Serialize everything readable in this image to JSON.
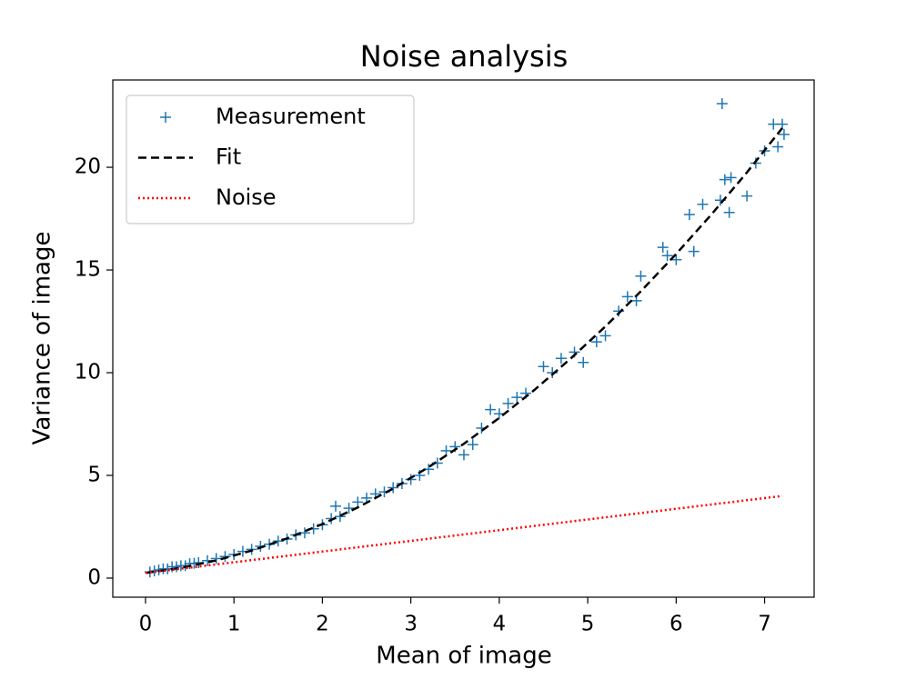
{
  "chart_data": {
    "type": "scatter",
    "title": "Noise analysis",
    "x_label": "Mean of image",
    "y_label": "Variance of image",
    "xlim": [
      -0.37,
      7.56
    ],
    "ylim": [
      -0.93,
      24.25
    ],
    "xticks": [
      0,
      1,
      2,
      3,
      4,
      5,
      6,
      7
    ],
    "yticks": [
      0,
      5,
      10,
      15,
      20
    ],
    "legend": "upper left",
    "series": [
      {
        "name": "Measurement",
        "color": "#1f77b4",
        "style": "plus",
        "x": [
          0.05,
          0.1,
          0.15,
          0.2,
          0.25,
          0.3,
          0.35,
          0.4,
          0.45,
          0.5,
          0.55,
          0.6,
          0.7,
          0.8,
          0.9,
          1.0,
          1.1,
          1.2,
          1.3,
          1.4,
          1.5,
          1.6,
          1.7,
          1.8,
          1.9,
          2.0,
          2.1,
          2.15,
          2.2,
          2.3,
          2.4,
          2.5,
          2.6,
          2.7,
          2.8,
          2.9,
          3.0,
          3.1,
          3.2,
          3.3,
          3.4,
          3.5,
          3.6,
          3.7,
          3.8,
          3.9,
          4.0,
          4.1,
          4.2,
          4.3,
          4.5,
          4.6,
          4.7,
          4.85,
          4.95,
          5.1,
          5.2,
          5.35,
          5.45,
          5.55,
          5.6,
          5.9,
          5.85,
          6.0,
          6.2,
          6.15,
          6.3,
          6.5,
          6.55,
          6.62,
          6.52,
          6.6,
          6.8,
          6.9,
          7.0,
          7.1,
          7.2,
          7.15,
          7.22
        ],
        "values": [
          0.3,
          0.35,
          0.4,
          0.45,
          0.45,
          0.55,
          0.55,
          0.6,
          0.6,
          0.7,
          0.72,
          0.75,
          0.85,
          0.95,
          1.05,
          1.15,
          1.3,
          1.4,
          1.55,
          1.65,
          1.8,
          1.9,
          2.1,
          2.2,
          2.4,
          2.6,
          2.9,
          3.5,
          3.0,
          3.4,
          3.7,
          3.9,
          4.1,
          4.2,
          4.4,
          4.6,
          4.8,
          5.0,
          5.3,
          5.6,
          6.2,
          6.4,
          6.0,
          6.5,
          7.3,
          8.2,
          8.0,
          8.5,
          8.8,
          9.0,
          10.3,
          10.0,
          10.7,
          11.0,
          10.5,
          11.5,
          11.8,
          13.0,
          13.7,
          13.5,
          14.7,
          15.7,
          16.1,
          15.5,
          15.9,
          17.7,
          18.2,
          18.4,
          19.4,
          19.5,
          23.1,
          17.8,
          18.6,
          20.2,
          20.8,
          22.1,
          22.1,
          21.0,
          21.6
        ]
      },
      {
        "name": "Fit",
        "color": "#000000",
        "style": "dashed",
        "x": [
          0,
          0.4,
          0.8,
          1.2,
          1.6,
          2.0,
          2.4,
          2.8,
          3.2,
          3.6,
          4.0,
          4.4,
          4.8,
          5.2,
          5.6,
          6.0,
          6.4,
          6.8,
          7.2
        ],
        "values": [
          0.25,
          0.5,
          0.86,
          1.34,
          1.93,
          2.63,
          3.44,
          4.36,
          5.4,
          6.54,
          7.8,
          9.17,
          10.66,
          12.25,
          13.96,
          15.78,
          17.71,
          19.75,
          21.91
        ]
      },
      {
        "name": "Noise",
        "color": "#ff0000",
        "style": "dotted",
        "x": [
          0,
          7.2
        ],
        "values": [
          0.25,
          4.0
        ]
      }
    ]
  }
}
